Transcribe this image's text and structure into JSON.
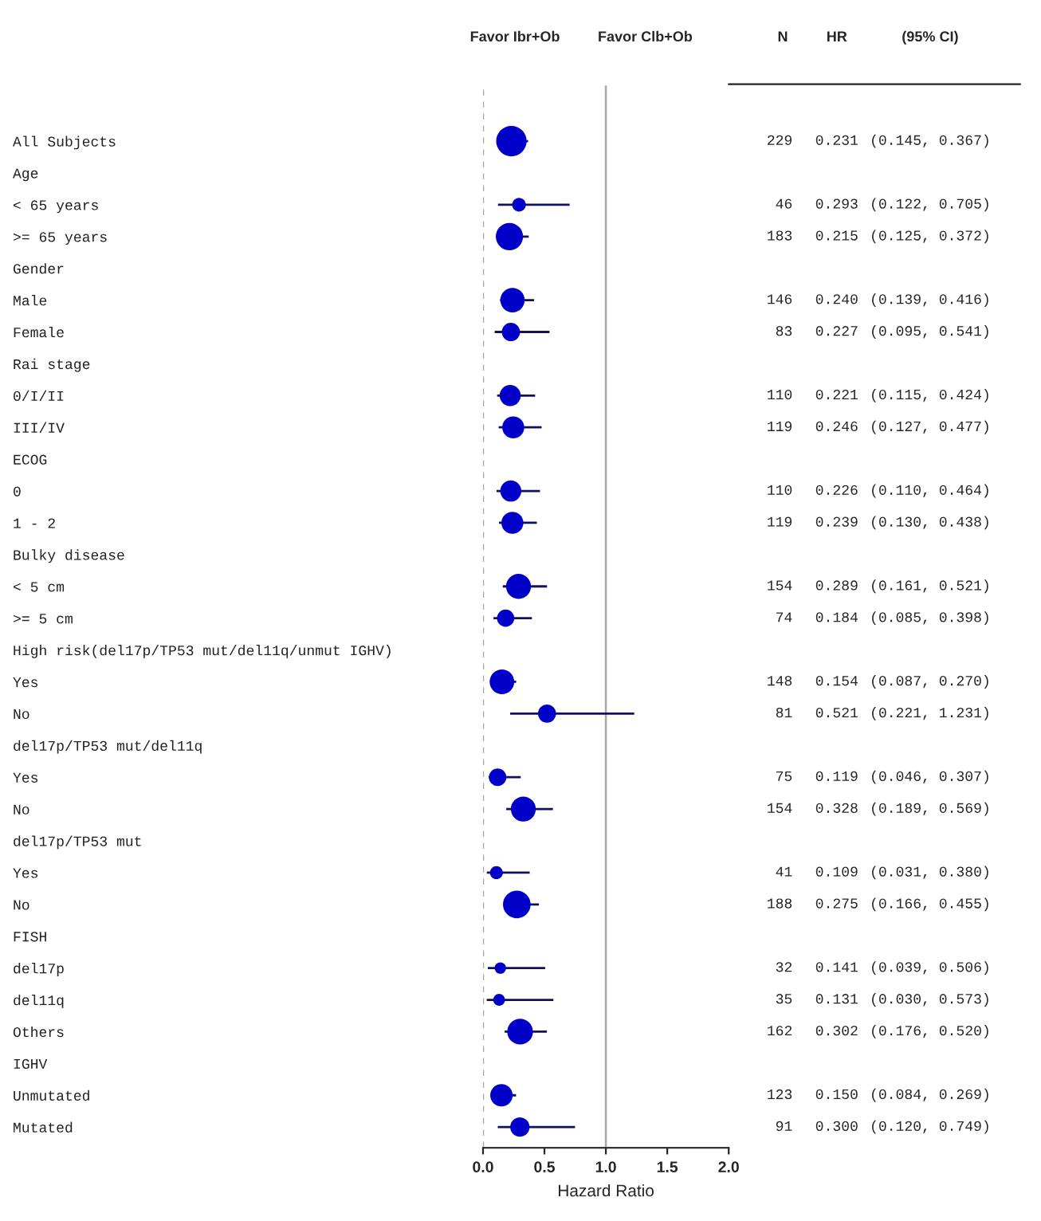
{
  "chart_data": {
    "type": "bubble",
    "xlabel": "Hazard Ratio",
    "categories": [
      "All Subjects",
      "Age",
      "< 65 years",
      ">= 65 years",
      "Gender",
      "Male",
      "Female",
      "Rai stage",
      "0/I/II",
      "III/IV",
      "ECOG",
      "0",
      "1 - 2",
      "Bulky disease",
      "< 5 cm",
      ">= 5 cm",
      "High risk(del17p/TP53 mut/del11q/unmut IGHV)",
      "Yes",
      "No",
      "del17p/TP53 mut/del11q",
      "Yes",
      "No",
      "del17p/TP53 mut",
      "Yes",
      "No",
      "FISH",
      "del17p",
      "del11q",
      "Others",
      "IGHV",
      "Unmutated",
      "Mutated"
    ],
    "values": [
      0.231,
      null,
      0.293,
      0.215,
      null,
      0.24,
      0.227,
      null,
      0.221,
      0.246,
      null,
      0.226,
      0.239,
      null,
      0.289,
      0.184,
      null,
      0.154,
      0.521,
      null,
      0.119,
      0.328,
      null,
      0.109,
      0.275,
      null,
      0.141,
      0.131,
      0.302,
      null,
      0.15,
      0.3
    ],
    "errors": [
      [
        0.145,
        0.367
      ],
      null,
      [
        0.122,
        0.705
      ],
      [
        0.125,
        0.372
      ],
      null,
      [
        0.139,
        0.416
      ],
      [
        0.095,
        0.541
      ],
      null,
      [
        0.115,
        0.424
      ],
      [
        0.127,
        0.477
      ],
      null,
      [
        0.11,
        0.464
      ],
      [
        0.13,
        0.438
      ],
      null,
      [
        0.161,
        0.521
      ],
      [
        0.085,
        0.398
      ],
      null,
      [
        0.087,
        0.27
      ],
      [
        0.221,
        1.231
      ],
      null,
      [
        0.046,
        0.307
      ],
      [
        0.189,
        0.569
      ],
      null,
      [
        0.031,
        0.38
      ],
      [
        0.166,
        0.455
      ],
      null,
      [
        0.039,
        0.506
      ],
      [
        0.03,
        0.573
      ],
      [
        0.176,
        0.52
      ],
      null,
      [
        0.084,
        0.269
      ],
      [
        0.12,
        0.749
      ]
    ],
    "sizes": [
      1,
      null,
      0.2,
      0.8,
      null,
      0.64,
      0.36,
      null,
      0.48,
      0.52,
      null,
      0.48,
      0.52,
      null,
      0.67,
      0.32,
      null,
      0.65,
      0.35,
      null,
      0.33,
      0.67,
      null,
      0.18,
      0.82,
      null,
      0.14,
      0.15,
      0.71,
      null,
      0.54,
      0.4
    ],
    "value_labels": [
      "0.231",
      null,
      "0.293",
      "0.215",
      null,
      "0.240",
      "0.227",
      null,
      "0.221",
      "0.246",
      null,
      "0.226",
      "0.239",
      null,
      "0.289",
      "0.184",
      null,
      "0.154",
      "0.521",
      null,
      "0.119",
      "0.328",
      null,
      "0.109",
      "0.275",
      null,
      "0.141",
      "0.131",
      "0.302",
      null,
      "0.150",
      "0.300"
    ],
    "color": "#0000c8",
    "xlim": [
      0,
      2
    ],
    "xticks": [
      {
        "value": 0,
        "label": "0.0"
      },
      {
        "value": 0.5,
        "label": "0.5"
      },
      {
        "value": 1,
        "label": "1.0"
      },
      {
        "value": 1.5,
        "label": "1.5"
      },
      {
        "value": 2,
        "label": "2.0"
      }
    ],
    "ref_lines": [
      {
        "axis": "x",
        "value": 0,
        "line_style": "dashed",
        "color": "#a8a8a8"
      },
      {
        "axis": "x",
        "value": 1,
        "line_style": "solid",
        "color": "#a8a8a8"
      }
    ],
    "grid": false,
    "orientation": "horizontal",
    "annotations": [
      "Favor Ibr+Ob",
      "Favor Clb+Ob",
      "N",
      "HR",
      "(95% CI)",
      "229",
      "(0.145, 0.367)",
      "46",
      "(0.122, 0.705)",
      "183",
      "(0.125, 0.372)",
      "146",
      "(0.139, 0.416)",
      "83",
      "(0.095, 0.541)",
      "110",
      "(0.115, 0.424)",
      "119",
      "(0.127, 0.477)",
      "110",
      "(0.110, 0.464)",
      "119",
      "(0.130, 0.438)",
      "154",
      "(0.161, 0.521)",
      "74",
      "(0.085, 0.398)",
      "148",
      "(0.087, 0.270)",
      "81",
      "(0.221, 1.231)",
      "75",
      "(0.046, 0.307)",
      "154",
      "(0.189, 0.569)",
      "41",
      "(0.031, 0.380)",
      "188",
      "(0.166, 0.455)",
      "32",
      "(0.039, 0.506)",
      "35",
      "(0.030, 0.573)",
      "162",
      "(0.176, 0.520)",
      "123",
      "(0.084, 0.269)",
      "91",
      "(0.120, 0.749)"
    ]
  }
}
